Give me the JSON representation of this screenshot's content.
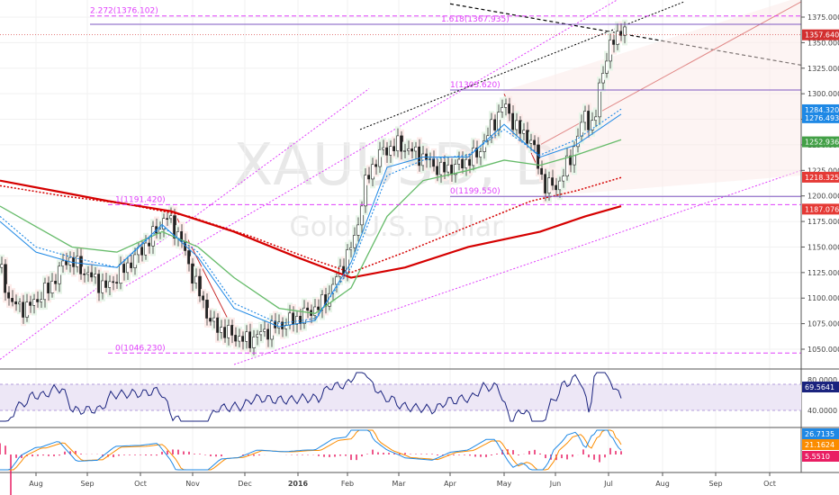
{
  "chart_data": {
    "type": "candlestick",
    "watermark": {
      "symbol": "XAUUSD, D",
      "name": "Gold U.S. Dollar"
    },
    "price_axis": {
      "ticks": [
        1050,
        1075,
        1100,
        1125,
        1150,
        1175,
        1200,
        1225,
        1250,
        1275,
        1300,
        1325,
        1350,
        1375
      ],
      "tick_labels": [
        "1050.000",
        "1075.000",
        "1100.000",
        "1125.000",
        "1150.000",
        "1175.000",
        "1200.000",
        "1225.000",
        "1250.000",
        "1275.000",
        "1300.000",
        "1325.000",
        "1350.000",
        "1375.000"
      ],
      "ylim": [
        1030,
        1385
      ]
    },
    "time_axis": {
      "labels": [
        "Aug",
        "Sep",
        "Oct",
        "Nov",
        "Dec",
        "2016",
        "Feb",
        "Mar",
        "Apr",
        "May",
        "Jun",
        "Jul",
        "Aug",
        "Sep",
        "Oct"
      ]
    },
    "fib_levels": [
      {
        "label": "2.272(1376.102)",
        "value": 1376.102
      },
      {
        "label": "1.618(1367.935)",
        "value": 1367.935
      },
      {
        "label": "1(1303.620)",
        "value": 1303.62
      },
      {
        "label": "0(1199.550)",
        "value": 1199.55
      },
      {
        "label": "1(1191.420)",
        "value": 1191.42
      },
      {
        "label": "0(1046.230)",
        "value": 1046.23
      }
    ],
    "price_badges": [
      {
        "value": "1357.640",
        "color": "#d32f2f"
      },
      {
        "value": "1284.320",
        "color": "#1e88e5"
      },
      {
        "value": "1276.493",
        "color": "#1e88e5"
      },
      {
        "value": "1252.936",
        "color": "#43a047"
      },
      {
        "value": "1218.325",
        "color": "#e53935"
      },
      {
        "value": "1187.076",
        "color": "#e53935"
      }
    ],
    "rsi": {
      "ticks": [
        80,
        40
      ],
      "tick_labels": [
        "80.0000",
        "40.0000"
      ],
      "last": "69.5641",
      "color": "#1a237e"
    },
    "macd": {
      "badges": [
        {
          "value": "26.7135",
          "color": "#1e88e5"
        },
        {
          "value": "21.1624",
          "color": "#fb8c00"
        },
        {
          "value": "5.5510",
          "color": "#e91e63"
        }
      ]
    },
    "colors": {
      "fib": "#e040fb",
      "up": "#a5d6a7",
      "down": "#ef9a9a",
      "ma200": "#d50000",
      "ma_blue": "#1e88e5",
      "ma_green": "#66bb6a"
    }
  }
}
